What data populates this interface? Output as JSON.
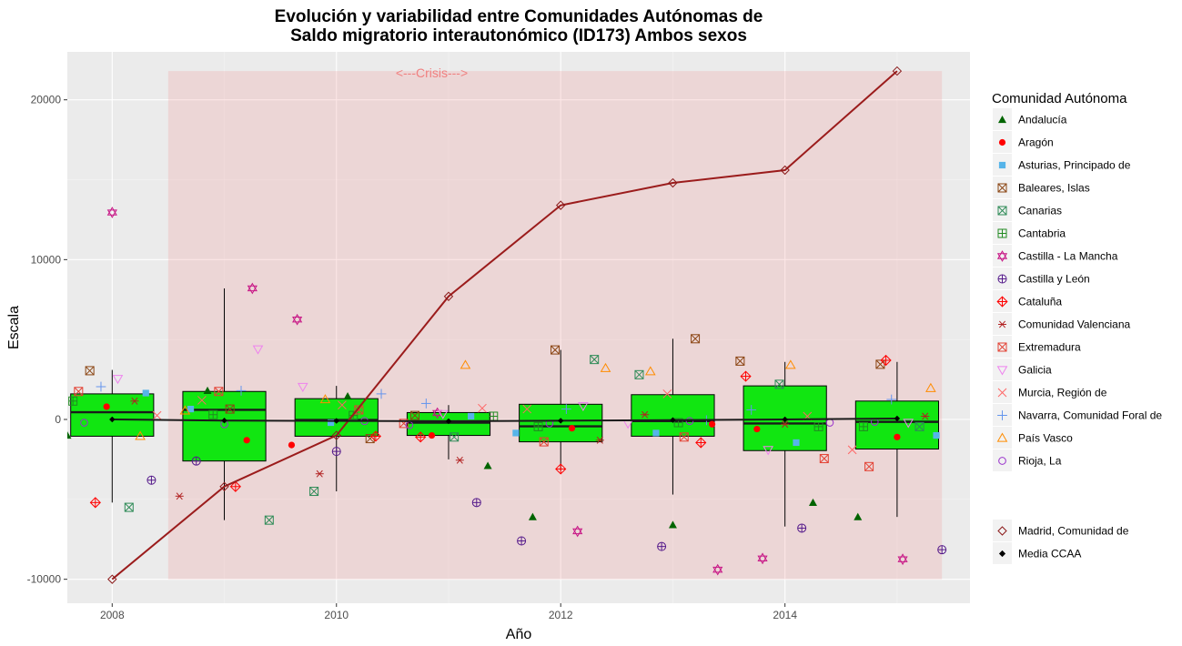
{
  "chart_data": {
    "type": "box",
    "title_line1": "Evolución y variabilidad entre Comunidades Autónomas de",
    "title_line2": "Saldo migratorio interautonómico (ID173) Ambos sexos",
    "xlabel": "Año",
    "ylabel": "Escala",
    "xlim": [
      2007.6,
      2015.65
    ],
    "ylim": [
      -11500,
      23000
    ],
    "x_ticks": [
      2008,
      2010,
      2012,
      2014
    ],
    "y_ticks": [
      -10000,
      0,
      10000,
      20000
    ],
    "grid": true,
    "legend_position": "right",
    "crisis": {
      "label": "<---Crisis--->",
      "x_start": 2008.5,
      "x_end": 2015.4,
      "y_min": -10000,
      "y_max": 21800,
      "color": "#f08080"
    },
    "legend_title": "Comunidad Autónoma",
    "legend_items": [
      {
        "name": "Andalucía",
        "shape": "triangle",
        "color": "#006400"
      },
      {
        "name": "Aragón",
        "shape": "circle",
        "color": "#ff0000"
      },
      {
        "name": "Asturias, Principado de",
        "shape": "square",
        "color": "#56b4e9"
      },
      {
        "name": "Baleares, Islas",
        "shape": "square-x",
        "color": "#8b4513"
      },
      {
        "name": "Canarias",
        "shape": "square-cross",
        "color": "#2e8b57"
      },
      {
        "name": "Cantabria",
        "shape": "square-plus",
        "color": "#228b22"
      },
      {
        "name": "Castilla - La Mancha",
        "shape": "star-david",
        "color": "#c71585"
      },
      {
        "name": "Castilla y León",
        "shape": "circle-plus",
        "color": "#551a8b"
      },
      {
        "name": "Cataluña",
        "shape": "diamond-plus",
        "color": "#ff0000"
      },
      {
        "name": "Comunidad Valenciana",
        "shape": "asterisk",
        "color": "#b22222"
      },
      {
        "name": "Extremadura",
        "shape": "square-x",
        "color": "#e34234"
      },
      {
        "name": "Galicia",
        "shape": "triangle-down",
        "color": "#ee82ee"
      },
      {
        "name": "Murcia, Región de",
        "shape": "x",
        "color": "#ff6666"
      },
      {
        "name": "Navarra, Comunidad Foral de",
        "shape": "plus",
        "color": "#6495ed"
      },
      {
        "name": "País Vasco",
        "shape": "triangle-open",
        "color": "#ff8c00"
      },
      {
        "name": "Rioja, La",
        "shape": "circle-open",
        "color": "#9932cc"
      }
    ],
    "legend_items2": [
      {
        "name": "Madrid, Comunidad de",
        "shape": "diamond-open",
        "color": "#8b1a1a"
      },
      {
        "name": "Media CCAA",
        "shape": "diamond",
        "color": "#000000"
      }
    ],
    "boxes": [
      {
        "year": 2008,
        "q1": -1050,
        "median": 450,
        "q3": 1600,
        "wlo": -5200,
        "whi": 3100
      },
      {
        "year": 2009,
        "q1": -2600,
        "median": 600,
        "q3": 1750,
        "wlo": -6300,
        "whi": 8200
      },
      {
        "year": 2010,
        "q1": -1050,
        "median": -30,
        "q3": 1300,
        "wlo": -4500,
        "whi": 2100
      },
      {
        "year": 2011,
        "q1": -1000,
        "median": -200,
        "q3": 430,
        "wlo": -2500,
        "whi": 900
      },
      {
        "year": 2012,
        "q1": -1400,
        "median": -430,
        "q3": 950,
        "wlo": -3200,
        "whi": 4350
      },
      {
        "year": 2013,
        "q1": -1050,
        "median": -100,
        "q3": 1550,
        "wlo": -4700,
        "whi": 5050
      },
      {
        "year": 2014,
        "q1": -1950,
        "median": -250,
        "q3": 2100,
        "wlo": -6700,
        "whi": 3600
      },
      {
        "year": 2015,
        "q1": -1850,
        "median": -150,
        "q3": 1150,
        "wlo": -6100,
        "whi": 3600
      }
    ],
    "madrid": {
      "x": [
        2008,
        2009,
        2010,
        2011,
        2012,
        2013,
        2014,
        2015
      ],
      "y": [
        -10000,
        -4200,
        -1000,
        7700,
        13400,
        14800,
        15600,
        21800
      ]
    },
    "media": {
      "x": [
        2008,
        2009,
        2010,
        2011,
        2012,
        2013,
        2014,
        2015
      ],
      "y": [
        0,
        -70,
        -90,
        -110,
        -80,
        -40,
        0,
        60
      ]
    },
    "points": [
      {
        "c": 0,
        "y": [
          -1000,
          1800,
          1450,
          -2900,
          -6100,
          -6600,
          -5200,
          -6100
        ]
      },
      {
        "c": 1,
        "y": [
          800,
          -1300,
          -1600,
          -1000,
          -550,
          -300,
          -600,
          -1100
        ]
      },
      {
        "c": 2,
        "y": [
          1650,
          650,
          -200,
          200,
          -850,
          -850,
          -1450,
          -1000
        ]
      },
      {
        "c": 3,
        "y": [
          3050,
          650,
          -1200,
          250,
          4350,
          5050,
          3650,
          3450
        ]
      },
      {
        "c": 4,
        "y": [
          -5500,
          -6300,
          -4500,
          -1100,
          3750,
          2800,
          2200,
          -450
        ]
      },
      {
        "c": 5,
        "y": [
          1150,
          300,
          250,
          200,
          -450,
          -200,
          -450,
          -450
        ]
      },
      {
        "c": 6,
        "y": [
          12950,
          8200,
          6250,
          400,
          -7000,
          -9400,
          -8700,
          -8750
        ]
      },
      {
        "c": 7,
        "y": [
          -3800,
          -2600,
          -2000,
          -5200,
          -7600,
          -7950,
          -6800,
          -8150
        ]
      },
      {
        "c": 8,
        "y": [
          -5200,
          -4200,
          -1050,
          -1100,
          -3100,
          -1450,
          2700,
          3700
        ]
      },
      {
        "c": 9,
        "y": [
          1150,
          -4800,
          -3400,
          -2550,
          -1300,
          300,
          -300,
          200
        ]
      },
      {
        "c": 10,
        "y": [
          1750,
          1750,
          600,
          -250,
          -1400,
          -1100,
          -2450,
          -2950
        ]
      },
      {
        "c": 11,
        "y": [
          2550,
          4400,
          2050,
          350,
          850,
          -250,
          -1900,
          -200
        ]
      },
      {
        "c": 12,
        "y": [
          250,
          1200,
          900,
          700,
          650,
          1600,
          200,
          -1900
        ]
      },
      {
        "c": 13,
        "y": [
          2050,
          1800,
          1600,
          1000,
          650,
          -50,
          600,
          1250
        ]
      },
      {
        "c": 14,
        "y": [
          -1050,
          550,
          1250,
          3400,
          3200,
          3000,
          3400,
          1950
        ]
      },
      {
        "c": 15,
        "y": [
          -200,
          -300,
          -100,
          -350,
          -250,
          -100,
          -200,
          -150
        ]
      }
    ]
  }
}
